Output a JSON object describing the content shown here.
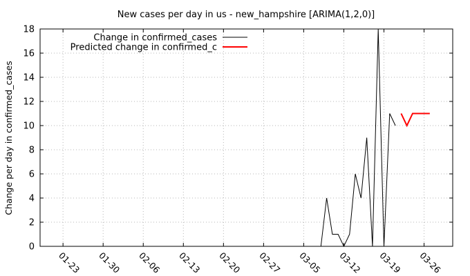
{
  "chart_data": {
    "type": "line",
    "title": "New cases per day in us - new_hampshire [ARIMA(1,2,0)]",
    "xlabel": "",
    "ylabel": "Change per day in confirmed_cases",
    "ylim": [
      0,
      18
    ],
    "yticks": [
      "0",
      "2",
      "4",
      "6",
      "8",
      "10",
      "12",
      "14",
      "16",
      "18"
    ],
    "xlim": [
      "2020-01-19",
      "2020-03-31"
    ],
    "xticks": [
      "01-23",
      "01-30",
      "02-06",
      "02-13",
      "02-20",
      "02-27",
      "03-05",
      "03-12",
      "03-19",
      "03-26"
    ],
    "grid": true,
    "legend_position": "top-left",
    "series": [
      {
        "name": "Change in confirmed_cases",
        "color": "#000000",
        "points": [
          {
            "x": "2020-03-08",
            "y": 0
          },
          {
            "x": "2020-03-09",
            "y": 4
          },
          {
            "x": "2020-03-10",
            "y": 1
          },
          {
            "x": "2020-03-11",
            "y": 1
          },
          {
            "x": "2020-03-12",
            "y": 0
          },
          {
            "x": "2020-03-13",
            "y": 1
          },
          {
            "x": "2020-03-14",
            "y": 6
          },
          {
            "x": "2020-03-15",
            "y": 4
          },
          {
            "x": "2020-03-16",
            "y": 9
          },
          {
            "x": "2020-03-17",
            "y": 0
          },
          {
            "x": "2020-03-18",
            "y": 18
          },
          {
            "x": "2020-03-19",
            "y": 0
          },
          {
            "x": "2020-03-20",
            "y": 11
          },
          {
            "x": "2020-03-21",
            "y": 10
          }
        ]
      },
      {
        "name": "Predicted change in confirmed_c",
        "color": "#ff0000",
        "points": [
          {
            "x": "2020-03-22",
            "y": 11
          },
          {
            "x": "2020-03-23",
            "y": 10
          },
          {
            "x": "2020-03-24",
            "y": 11
          },
          {
            "x": "2020-03-25",
            "y": 11
          },
          {
            "x": "2020-03-26",
            "y": 11
          },
          {
            "x": "2020-03-27",
            "y": 11
          }
        ]
      }
    ]
  }
}
